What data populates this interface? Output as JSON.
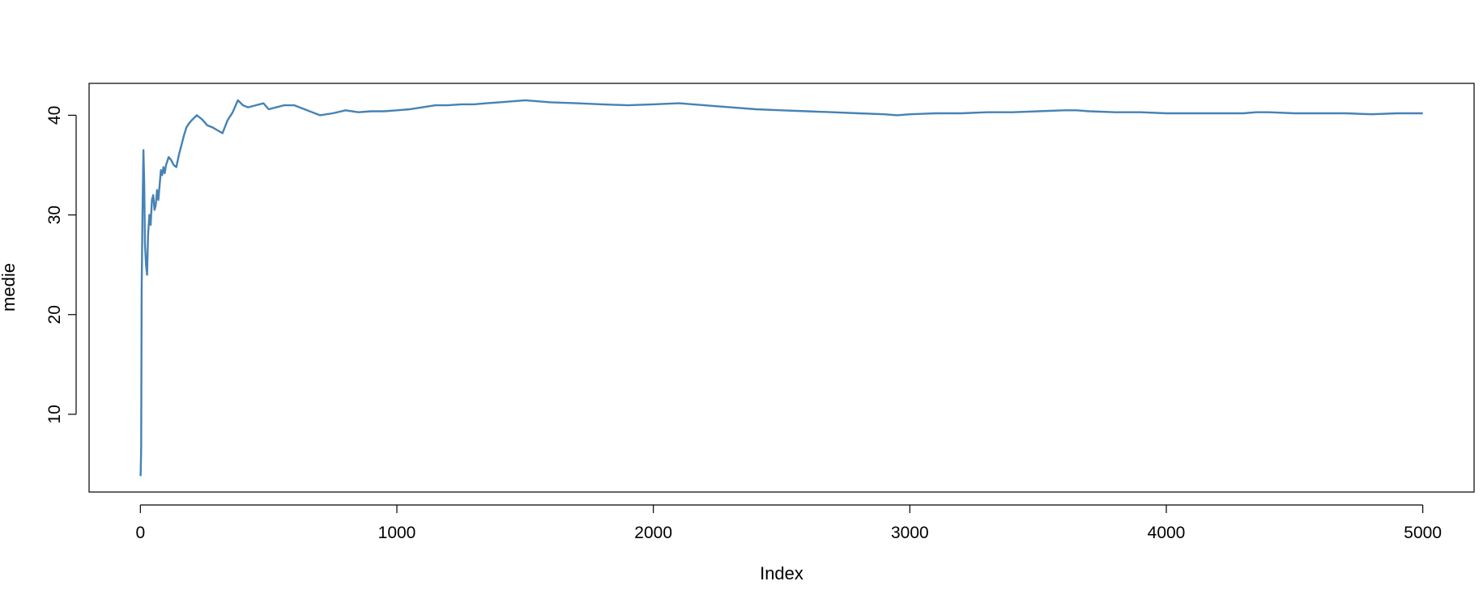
{
  "chart_data": {
    "type": "line",
    "title": "",
    "xlabel": "Index",
    "ylabel": "medie",
    "xlim": [
      -200,
      5200
    ],
    "ylim": [
      2.2,
      43.2
    ],
    "xticks": [
      0,
      1000,
      2000,
      3000,
      4000,
      5000
    ],
    "yticks": [
      10,
      20,
      30,
      40
    ],
    "xtick_labels": [
      "0",
      "1000",
      "2000",
      "3000",
      "4000",
      "5000"
    ],
    "ytick_labels": [
      "10",
      "20",
      "30",
      "40"
    ],
    "grid": false,
    "legend": "none",
    "color": "#4682b4",
    "series": [
      {
        "x": [
          1,
          3,
          5,
          8,
          12,
          15,
          18,
          22,
          26,
          30,
          35,
          40,
          45,
          50,
          55,
          60,
          65,
          70,
          75,
          80,
          85,
          90,
          95,
          100,
          110,
          120,
          130,
          140,
          150,
          160,
          170,
          180,
          190,
          200,
          220,
          240,
          260,
          280,
          300,
          320,
          340,
          360,
          380,
          400,
          420,
          450,
          480,
          500,
          530,
          560,
          600,
          650,
          700,
          750,
          800,
          850,
          900,
          950,
          1000,
          1050,
          1100,
          1150,
          1200,
          1250,
          1300,
          1350,
          1400,
          1450,
          1500,
          1550,
          1600,
          1700,
          1800,
          1900,
          2000,
          2100,
          2200,
          2300,
          2400,
          2500,
          2600,
          2700,
          2800,
          2900,
          2950,
          3000,
          3100,
          3200,
          3300,
          3400,
          3500,
          3600,
          3650,
          3700,
          3800,
          3900,
          4000,
          4100,
          4200,
          4300,
          4350,
          4400,
          4500,
          4600,
          4700,
          4800,
          4900,
          5000
        ],
        "y": [
          3.8,
          6.5,
          22.5,
          30.0,
          36.5,
          33.0,
          27.0,
          25.0,
          24.0,
          28.0,
          30.0,
          29.0,
          31.5,
          32.0,
          30.5,
          31.0,
          32.5,
          31.5,
          33.0,
          34.5,
          34.0,
          34.8,
          34.2,
          35.0,
          35.8,
          35.5,
          35.0,
          34.8,
          36.0,
          37.0,
          38.0,
          38.8,
          39.2,
          39.5,
          40.0,
          39.6,
          39.0,
          38.8,
          38.5,
          38.2,
          39.5,
          40.3,
          41.5,
          41.0,
          40.8,
          41.0,
          41.2,
          40.6,
          40.8,
          41.0,
          41.0,
          40.5,
          40.0,
          40.2,
          40.5,
          40.3,
          40.4,
          40.4,
          40.5,
          40.6,
          40.8,
          41.0,
          41.0,
          41.1,
          41.1,
          41.2,
          41.3,
          41.4,
          41.5,
          41.4,
          41.3,
          41.2,
          41.1,
          41.0,
          41.1,
          41.2,
          41.0,
          40.8,
          40.6,
          40.5,
          40.4,
          40.3,
          40.2,
          40.1,
          40.0,
          40.1,
          40.2,
          40.2,
          40.3,
          40.3,
          40.4,
          40.5,
          40.5,
          40.4,
          40.3,
          40.3,
          40.2,
          40.2,
          40.2,
          40.2,
          40.3,
          40.3,
          40.2,
          40.2,
          40.2,
          40.1,
          40.2,
          40.2
        ]
      }
    ]
  }
}
